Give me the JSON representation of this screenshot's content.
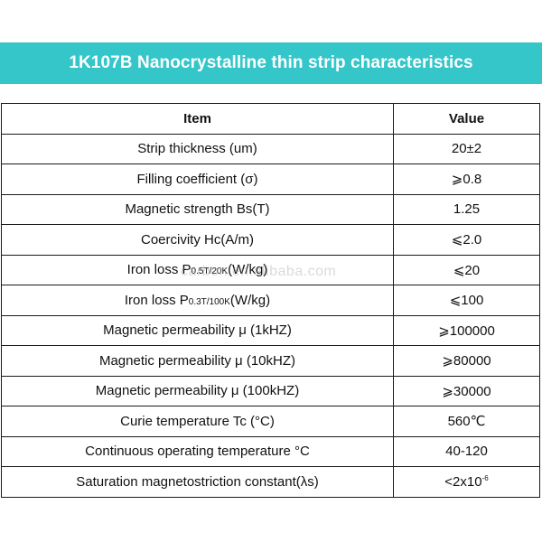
{
  "title": "1K107B Nanocrystalline thin strip characteristics",
  "colors": {
    "banner_bg": "#34c6c9",
    "banner_text": "#ffffff",
    "border": "#1a1a1a"
  },
  "table": {
    "headers": {
      "item": "Item",
      "value": "Value"
    },
    "rows": [
      {
        "item": "Strip thickness (um)",
        "value": "20±2"
      },
      {
        "item": "Filling coefficient (σ)",
        "value": "⩾0.8"
      },
      {
        "item": "Magnetic strength Bs(T)",
        "value": "1.25"
      },
      {
        "item": "Coercivity Hc(A/m)",
        "value": "⩽2.0"
      },
      {
        "item_prefix": "Iron loss P",
        "item_sub": "0.5T/20K",
        "item_suffix": "(W/kg)",
        "value": "⩽20"
      },
      {
        "item_prefix": "Iron loss P",
        "item_sub": "0.3T/100K",
        "item_suffix": "(W/kg)",
        "value": "⩽100"
      },
      {
        "item": "Magnetic permeability μ (1kHZ)",
        "value": "⩾100000"
      },
      {
        "item": "Magnetic permeability μ (10kHZ)",
        "value": "⩾80000"
      },
      {
        "item": "Magnetic permeability μ (100kHZ)",
        "value": "⩾30000"
      },
      {
        "item": "Curie temperature Tc (°C)",
        "value": "560℃"
      },
      {
        "item": "Continuous operating temperature °C",
        "value": "40-120"
      },
      {
        "item": "Saturation magnetostriction constant(λs)",
        "value_base": "<2x10",
        "value_sup": "-6"
      }
    ]
  },
  "watermark": "carbon.en.alibaba.com"
}
